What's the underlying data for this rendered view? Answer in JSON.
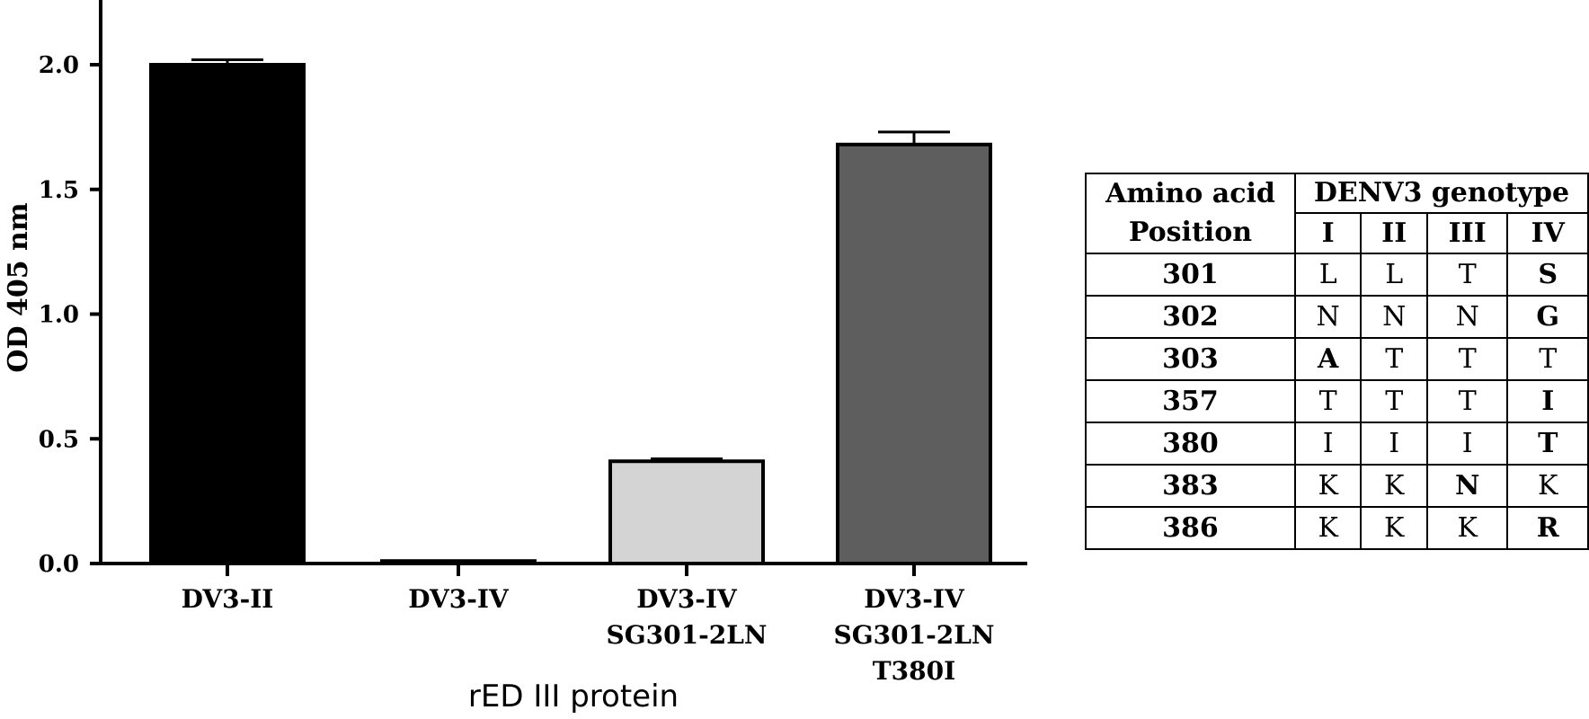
{
  "chart_data": {
    "type": "bar",
    "ylabel": "OD 405 nm",
    "xlabel": "rED III protein",
    "ylim": [
      0,
      2.2
    ],
    "yticks": [
      "0.0",
      "0.5",
      "1.0",
      "1.5",
      "2.0"
    ],
    "categories": [
      [
        "DV3-II"
      ],
      [
        "DV3-IV"
      ],
      [
        "DV3-IV",
        "SG301-2LN"
      ],
      [
        "DV3-IV",
        "SG301-2LN",
        "T380I"
      ]
    ],
    "values": [
      2.0,
      0.01,
      0.41,
      1.68
    ],
    "errors": [
      0.02,
      0.0,
      0.01,
      0.05
    ],
    "colors": [
      "#000000",
      "#000000",
      "#d4d4d4",
      "#5e5e5e"
    ]
  },
  "table": {
    "header_col": [
      "Amino acid",
      "Position"
    ],
    "header_group": "DENV3 genotype",
    "genotypes": [
      "I",
      "II",
      "III",
      "IV"
    ],
    "rows": [
      {
        "position": "301",
        "cells": [
          "L",
          "L",
          "T",
          "S"
        ],
        "bold": [
          false,
          false,
          false,
          true
        ]
      },
      {
        "position": "302",
        "cells": [
          "N",
          "N",
          "N",
          "G"
        ],
        "bold": [
          false,
          false,
          false,
          true
        ]
      },
      {
        "position": "303",
        "cells": [
          "A",
          "T",
          "T",
          "T"
        ],
        "bold": [
          true,
          false,
          false,
          false
        ]
      },
      {
        "position": "357",
        "cells": [
          "T",
          "T",
          "T",
          "I"
        ],
        "bold": [
          false,
          false,
          false,
          true
        ]
      },
      {
        "position": "380",
        "cells": [
          "I",
          "I",
          "I",
          "T"
        ],
        "bold": [
          false,
          false,
          false,
          true
        ]
      },
      {
        "position": "383",
        "cells": [
          "K",
          "K",
          "N",
          "K"
        ],
        "bold": [
          false,
          false,
          true,
          false
        ]
      },
      {
        "position": "386",
        "cells": [
          "K",
          "K",
          "K",
          "R"
        ],
        "bold": [
          false,
          false,
          false,
          true
        ]
      }
    ]
  }
}
